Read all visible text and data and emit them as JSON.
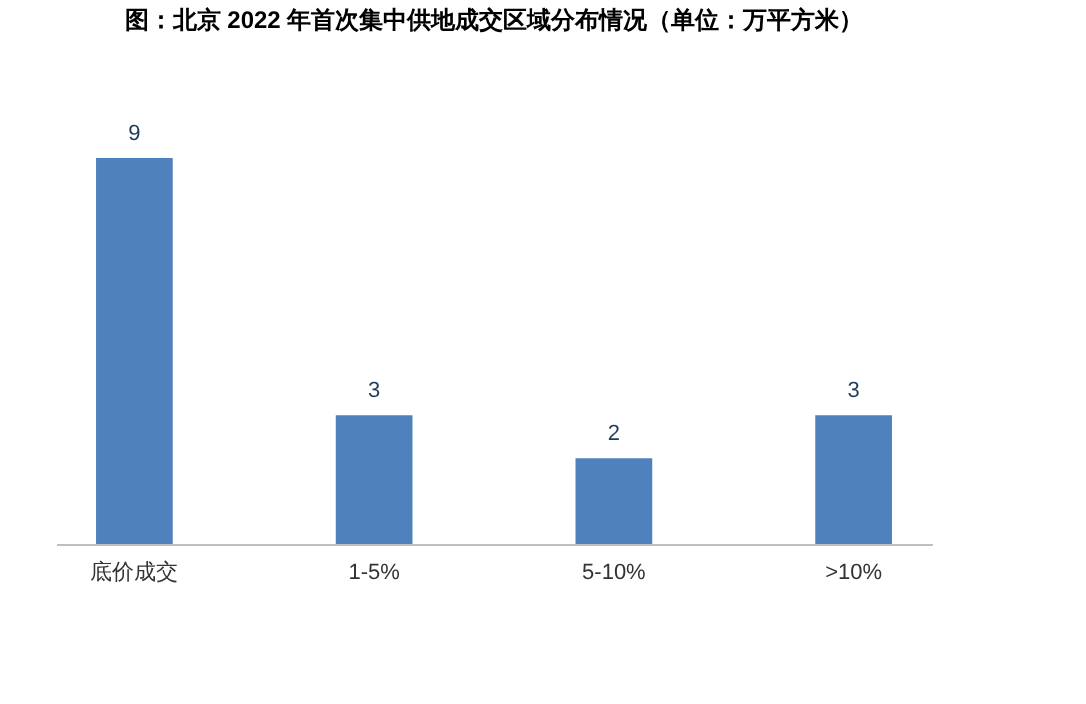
{
  "chart_data": {
    "type": "bar",
    "title": "图：北京 2022 年首次集中供地成交区域分布情况（单位：万平方米）",
    "categories": [
      "底价成交",
      "1-5%",
      "5-10%",
      ">10%"
    ],
    "values": [
      9,
      3,
      2,
      3
    ],
    "color": "#4f81bd",
    "data_labels": true
  }
}
